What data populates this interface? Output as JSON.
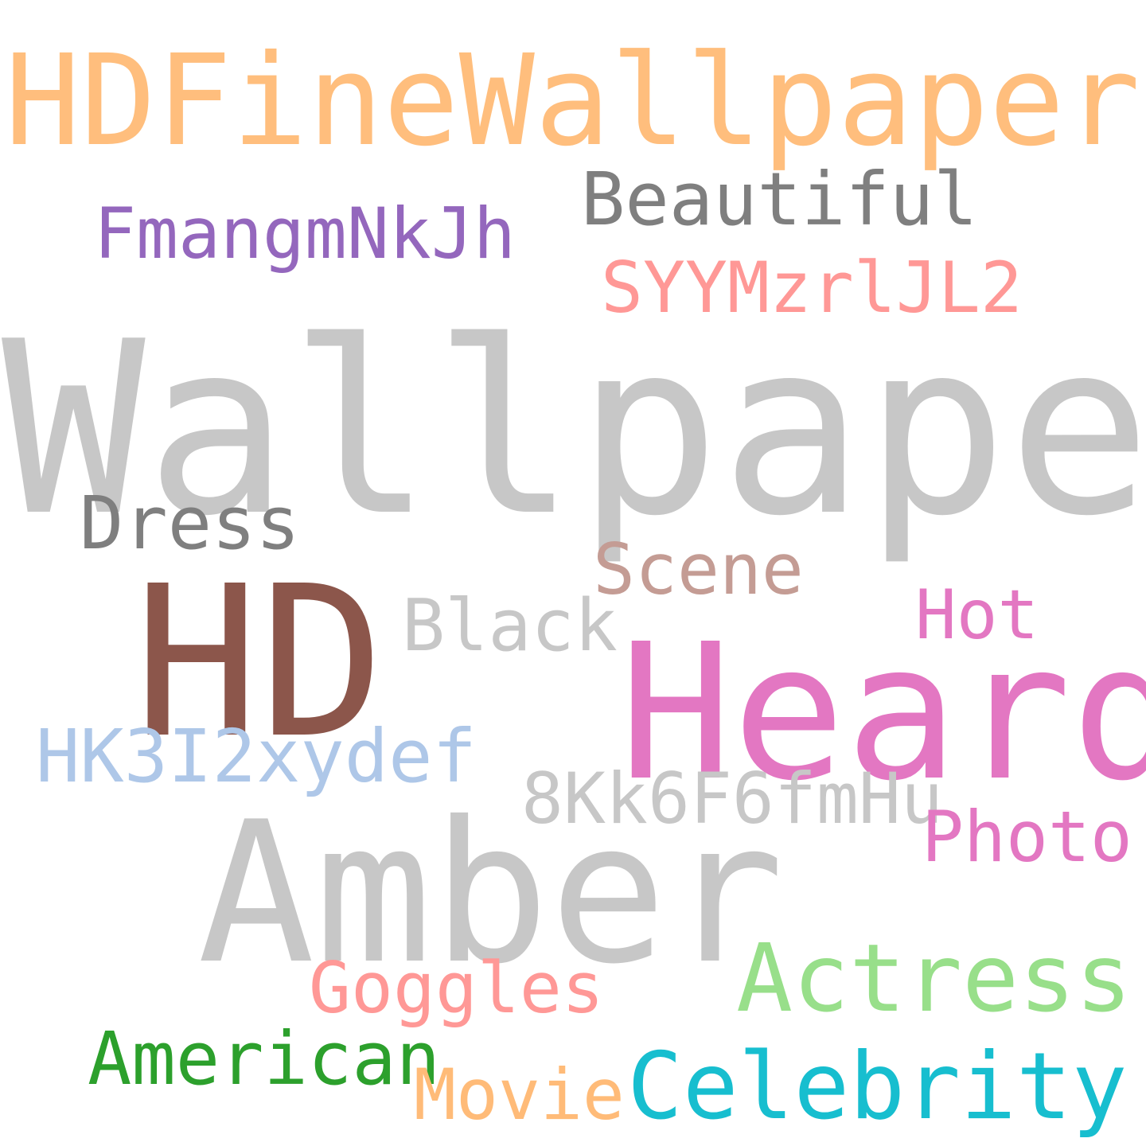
{
  "words": [
    {
      "text": "HDFineWallpapers",
      "color": "#ffbe7d"
    },
    {
      "text": "Beautiful",
      "color": "#7f7f7f"
    },
    {
      "text": "FmangmNkJh",
      "color": "#9467bd"
    },
    {
      "text": "SYYMzrlJL2",
      "color": "#ff9896"
    },
    {
      "text": "Wallpaper",
      "color": "#c7c7c7"
    },
    {
      "text": "Dress",
      "color": "#7f7f7f"
    },
    {
      "text": "Scene",
      "color": "#c49c94"
    },
    {
      "text": "HD",
      "color": "#8c564b"
    },
    {
      "text": "Hot",
      "color": "#e377c2"
    },
    {
      "text": "Black",
      "color": "#c7c7c7"
    },
    {
      "text": "Heard",
      "color": "#e377c2"
    },
    {
      "text": "HK3I2xydef",
      "color": "#aec7e8"
    },
    {
      "text": "8Kk6F6fmHu",
      "color": "#c7c7c7"
    },
    {
      "text": "Amber",
      "color": "#c7c7c7"
    },
    {
      "text": "Photo",
      "color": "#e377c2"
    },
    {
      "text": "Actress",
      "color": "#98df8a"
    },
    {
      "text": "Goggles",
      "color": "#ff9896"
    },
    {
      "text": "American",
      "color": "#2ca02c"
    },
    {
      "text": "Celebrity",
      "color": "#17becf"
    },
    {
      "text": "Movie",
      "color": "#ffbb78"
    }
  ]
}
